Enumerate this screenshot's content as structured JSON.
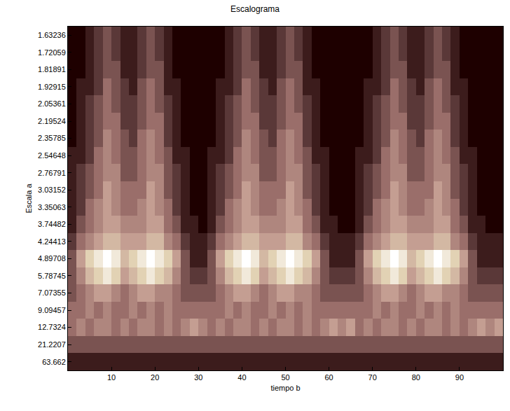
{
  "chart_data": {
    "type": "heatmap",
    "title": "Escalograma",
    "x_label": "tiempo b",
    "y_label": "Escala a",
    "x": [
      1,
      3,
      5,
      7,
      9,
      11,
      13,
      15,
      17,
      19,
      21,
      23,
      25,
      27,
      29,
      31,
      33,
      35,
      37,
      39,
      41,
      43,
      45,
      47,
      49,
      51,
      53,
      55,
      57,
      59,
      61,
      63,
      65,
      67,
      69,
      71,
      73,
      75,
      77,
      79,
      81,
      83,
      85,
      87,
      89,
      91,
      93,
      95,
      97,
      99
    ],
    "y": [
      "1.63236",
      "1.72059",
      "1.81891",
      "1.92915",
      "2.05361",
      "2.19524",
      "2.35785",
      "2.54648",
      "2.76791",
      "3.03152",
      "3.35063",
      "3.74482",
      "4.24413",
      "4.89708",
      "5.78745",
      "7.07355",
      "9.09457",
      "12.7324",
      "21.2207",
      "63.662"
    ],
    "xlim": [
      0,
      100
    ],
    "xticks": [
      10,
      20,
      30,
      40,
      50,
      60,
      70,
      80,
      90
    ],
    "zlim": [
      0,
      10
    ],
    "cells": [
      [
        0,
        0,
        1,
        2,
        3,
        2,
        1,
        1,
        2,
        3,
        2,
        1,
        0,
        0,
        0,
        0,
        0,
        0,
        1,
        2,
        3,
        2,
        1,
        1,
        2,
        3,
        2,
        1,
        0,
        0,
        0,
        0,
        0,
        0,
        0,
        1,
        2,
        3,
        2,
        1,
        1,
        2,
        3,
        2,
        1,
        0,
        0,
        0,
        0,
        0
      ],
      [
        0,
        0,
        1,
        2,
        3,
        2,
        1,
        1,
        2,
        3,
        2,
        1,
        0,
        0,
        0,
        0,
        0,
        0,
        1,
        2,
        3,
        2,
        1,
        1,
        2,
        3,
        2,
        1,
        0,
        0,
        0,
        0,
        0,
        0,
        0,
        1,
        2,
        3,
        2,
        1,
        1,
        2,
        3,
        2,
        1,
        0,
        0,
        0,
        0,
        0
      ],
      [
        0,
        0,
        1,
        2,
        3,
        3,
        1,
        1,
        2,
        3,
        3,
        1,
        0,
        0,
        0,
        0,
        0,
        0,
        1,
        2,
        3,
        3,
        1,
        1,
        2,
        3,
        3,
        1,
        0,
        0,
        0,
        0,
        0,
        0,
        0,
        1,
        2,
        3,
        3,
        1,
        1,
        2,
        3,
        3,
        1,
        0,
        0,
        0,
        0,
        0
      ],
      [
        0,
        1,
        1,
        2,
        4,
        3,
        2,
        1,
        3,
        4,
        3,
        1,
        1,
        0,
        0,
        0,
        0,
        1,
        1,
        2,
        4,
        3,
        2,
        1,
        3,
        4,
        3,
        1,
        1,
        0,
        0,
        0,
        0,
        0,
        1,
        1,
        2,
        4,
        3,
        2,
        1,
        3,
        4,
        3,
        1,
        1,
        0,
        0,
        0,
        0
      ],
      [
        0,
        1,
        2,
        3,
        4,
        3,
        2,
        2,
        3,
        4,
        3,
        2,
        1,
        0,
        0,
        0,
        0,
        1,
        2,
        3,
        4,
        3,
        2,
        2,
        3,
        4,
        3,
        2,
        1,
        0,
        0,
        0,
        0,
        0,
        1,
        2,
        3,
        4,
        3,
        2,
        2,
        3,
        4,
        3,
        2,
        1,
        0,
        0,
        0,
        0
      ],
      [
        0,
        1,
        2,
        3,
        4,
        4,
        2,
        2,
        3,
        4,
        4,
        2,
        1,
        0,
        0,
        0,
        0,
        1,
        2,
        3,
        4,
        4,
        2,
        2,
        3,
        4,
        4,
        2,
        1,
        0,
        0,
        0,
        0,
        0,
        1,
        2,
        3,
        4,
        4,
        2,
        2,
        3,
        4,
        4,
        2,
        1,
        0,
        0,
        0,
        0
      ],
      [
        0,
        1,
        2,
        3,
        5,
        4,
        3,
        2,
        4,
        5,
        4,
        2,
        1,
        0,
        0,
        0,
        0,
        1,
        2,
        3,
        5,
        4,
        3,
        2,
        4,
        5,
        4,
        2,
        1,
        0,
        0,
        0,
        0,
        0,
        1,
        2,
        3,
        5,
        4,
        3,
        2,
        4,
        5,
        4,
        2,
        1,
        0,
        0,
        0,
        0
      ],
      [
        1,
        1,
        2,
        4,
        5,
        4,
        3,
        3,
        4,
        5,
        4,
        3,
        1,
        1,
        0,
        0,
        1,
        1,
        2,
        4,
        5,
        4,
        3,
        3,
        4,
        5,
        4,
        3,
        1,
        1,
        0,
        0,
        0,
        1,
        1,
        2,
        4,
        5,
        4,
        3,
        3,
        4,
        5,
        4,
        3,
        1,
        1,
        0,
        0,
        0
      ],
      [
        1,
        2,
        3,
        4,
        5,
        5,
        3,
        3,
        4,
        5,
        5,
        3,
        2,
        1,
        0,
        0,
        1,
        2,
        3,
        4,
        5,
        5,
        3,
        3,
        4,
        5,
        5,
        3,
        2,
        1,
        0,
        0,
        0,
        1,
        2,
        3,
        4,
        5,
        5,
        3,
        3,
        4,
        5,
        5,
        3,
        2,
        1,
        0,
        0,
        0
      ],
      [
        1,
        2,
        3,
        4,
        6,
        5,
        4,
        4,
        4,
        6,
        5,
        3,
        2,
        1,
        0,
        0,
        1,
        2,
        3,
        4,
        6,
        5,
        4,
        4,
        4,
        6,
        5,
        3,
        2,
        1,
        0,
        0,
        0,
        1,
        2,
        3,
        4,
        6,
        5,
        4,
        4,
        4,
        6,
        5,
        3,
        2,
        1,
        0,
        0,
        0
      ],
      [
        1,
        2,
        4,
        5,
        6,
        5,
        4,
        4,
        5,
        6,
        5,
        4,
        2,
        1,
        0,
        0,
        1,
        2,
        4,
        5,
        6,
        5,
        4,
        4,
        5,
        6,
        5,
        4,
        2,
        1,
        0,
        0,
        0,
        1,
        2,
        4,
        5,
        6,
        5,
        4,
        4,
        5,
        6,
        5,
        4,
        2,
        1,
        0,
        0,
        0
      ],
      [
        1,
        3,
        4,
        5,
        6,
        6,
        5,
        5,
        5,
        6,
        6,
        4,
        3,
        1,
        1,
        0,
        1,
        3,
        4,
        5,
        6,
        6,
        5,
        5,
        5,
        6,
        6,
        4,
        3,
        1,
        1,
        0,
        0,
        1,
        3,
        4,
        5,
        6,
        6,
        5,
        5,
        5,
        6,
        6,
        4,
        3,
        1,
        1,
        0,
        0
      ],
      [
        2,
        4,
        5,
        6,
        7,
        7,
        6,
        6,
        6,
        7,
        7,
        5,
        4,
        2,
        1,
        1,
        2,
        4,
        5,
        6,
        7,
        7,
        6,
        6,
        6,
        7,
        7,
        5,
        4,
        2,
        1,
        1,
        1,
        2,
        4,
        5,
        6,
        7,
        7,
        6,
        6,
        6,
        7,
        7,
        5,
        4,
        2,
        1,
        1,
        1
      ],
      [
        3,
        6,
        8,
        9,
        10,
        9,
        7,
        8,
        9,
        10,
        9,
        8,
        6,
        3,
        1,
        1,
        3,
        6,
        8,
        9,
        10,
        9,
        7,
        8,
        9,
        10,
        9,
        8,
        6,
        3,
        1,
        1,
        1,
        3,
        6,
        8,
        9,
        10,
        9,
        7,
        8,
        9,
        10,
        9,
        8,
        6,
        3,
        1,
        1,
        1
      ],
      [
        3,
        5,
        7,
        8,
        9,
        8,
        6,
        7,
        8,
        9,
        8,
        7,
        5,
        3,
        2,
        2,
        3,
        5,
        7,
        8,
        9,
        8,
        6,
        7,
        8,
        9,
        8,
        7,
        5,
        3,
        2,
        2,
        2,
        3,
        5,
        7,
        8,
        9,
        8,
        6,
        7,
        8,
        9,
        8,
        7,
        5,
        3,
        2,
        2,
        2
      ],
      [
        3,
        4,
        5,
        6,
        6,
        5,
        4,
        5,
        6,
        6,
        5,
        5,
        4,
        3,
        3,
        3,
        3,
        4,
        5,
        6,
        6,
        5,
        4,
        5,
        6,
        6,
        5,
        5,
        4,
        3,
        3,
        3,
        3,
        3,
        4,
        5,
        6,
        6,
        5,
        4,
        5,
        6,
        6,
        5,
        5,
        4,
        3,
        3,
        3,
        3
      ],
      [
        4,
        4,
        5,
        4,
        5,
        4,
        4,
        5,
        4,
        5,
        4,
        5,
        4,
        4,
        4,
        4,
        4,
        4,
        5,
        4,
        5,
        4,
        4,
        5,
        4,
        5,
        4,
        5,
        4,
        4,
        4,
        4,
        4,
        4,
        4,
        5,
        4,
        5,
        4,
        4,
        5,
        4,
        5,
        4,
        5,
        4,
        4,
        4,
        4,
        4
      ],
      [
        4,
        5,
        4,
        5,
        5,
        4,
        5,
        4,
        5,
        5,
        4,
        5,
        4,
        5,
        6,
        5,
        4,
        5,
        4,
        5,
        5,
        4,
        5,
        4,
        5,
        5,
        4,
        5,
        4,
        5,
        6,
        5,
        6,
        4,
        5,
        4,
        5,
        5,
        4,
        5,
        4,
        5,
        5,
        4,
        5,
        4,
        5,
        6,
        5,
        6
      ],
      [
        3,
        3,
        3,
        3,
        3,
        3,
        3,
        3,
        3,
        3,
        3,
        3,
        3,
        3,
        3,
        3,
        3,
        3,
        3,
        3,
        3,
        3,
        3,
        3,
        3,
        3,
        3,
        3,
        3,
        3,
        3,
        3,
        3,
        3,
        3,
        3,
        3,
        3,
        3,
        3,
        3,
        3,
        3,
        3,
        3,
        3,
        3,
        3,
        3,
        3
      ],
      [
        1,
        1,
        1,
        1,
        1,
        1,
        1,
        1,
        1,
        1,
        1,
        1,
        1,
        1,
        1,
        1,
        1,
        1,
        1,
        1,
        1,
        1,
        1,
        1,
        1,
        1,
        1,
        1,
        1,
        1,
        1,
        1,
        1,
        1,
        1,
        1,
        1,
        1,
        1,
        1,
        1,
        1,
        1,
        1,
        1,
        1,
        1,
        1,
        1,
        1
      ]
    ]
  }
}
